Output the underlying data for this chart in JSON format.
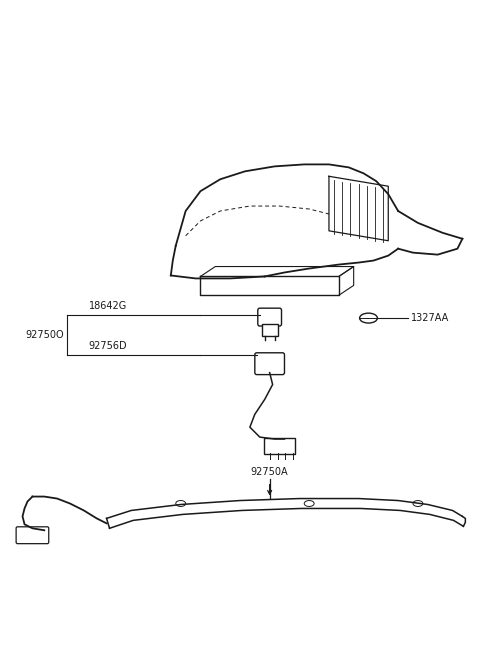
{
  "bg_color": "#ffffff",
  "line_color": "#1a1a1a",
  "fig_width": 4.8,
  "fig_height": 6.57,
  "dpi": 100,
  "label_92750O": "92750O",
  "label_18642G": "18642G",
  "label_92756D": "92756D",
  "label_1327AA": "1327AA",
  "label_92750A": "92750A"
}
